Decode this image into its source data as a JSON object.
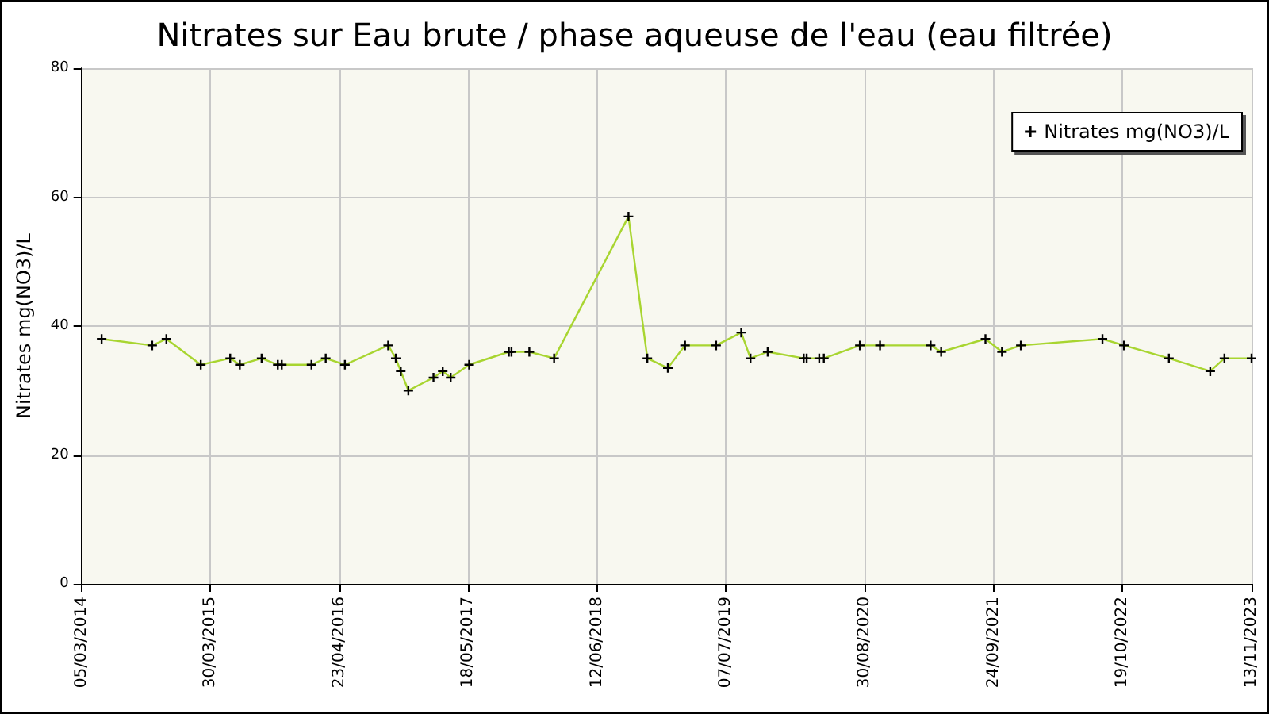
{
  "chart_data": {
    "type": "line",
    "title": "Nitrates sur Eau brute / phase aqueuse de l'eau (eau filtrée)",
    "ylabel": "Nitrates mg(NO3)/L",
    "x": [
      "2014-05-05",
      "2014-10-05",
      "2014-11-17",
      "2015-03-01",
      "2015-05-29",
      "2015-06-27",
      "2015-09-01",
      "2015-10-20",
      "2015-11-01",
      "2016-01-30",
      "2016-03-13",
      "2016-05-10",
      "2016-09-18",
      "2016-10-11",
      "2016-10-26",
      "2016-11-18",
      "2017-02-02",
      "2017-03-02",
      "2017-03-26",
      "2017-05-21",
      "2017-09-18",
      "2017-09-26",
      "2017-11-19",
      "2018-02-02",
      "2018-09-15",
      "2018-11-11",
      "2019-01-12",
      "2019-03-05",
      "2019-06-07",
      "2019-08-22",
      "2019-09-19",
      "2019-11-10",
      "2020-02-27",
      "2020-03-07",
      "2020-04-14",
      "2020-04-28",
      "2020-08-15",
      "2020-10-15",
      "2021-03-17",
      "2021-04-18",
      "2021-08-30",
      "2021-10-19",
      "2021-12-15",
      "2022-08-19",
      "2022-10-23",
      "2023-03-08",
      "2023-07-11",
      "2023-08-23",
      "2023-11-13"
    ],
    "series": [
      {
        "name": "Nitrates mg(NO3)/L",
        "color": "#a8d530",
        "values": [
          38,
          37,
          38,
          34,
          35,
          34,
          35,
          34,
          34,
          34,
          35,
          34,
          37,
          35,
          33,
          30,
          32,
          33,
          32,
          34,
          36,
          36,
          36,
          35,
          57,
          35,
          33.5,
          37,
          37,
          39,
          35,
          36,
          35,
          35,
          35,
          35,
          37,
          37,
          37,
          36,
          38,
          36,
          37,
          38,
          37,
          35,
          33,
          35,
          35
        ]
      }
    ],
    "xlim": [
      "2014-03-05",
      "2023-11-13"
    ],
    "xticks": [
      {
        "value": "2014-03-05",
        "label": "05/03/2014"
      },
      {
        "value": "2015-03-30",
        "label": "30/03/2015"
      },
      {
        "value": "2016-04-23",
        "label": "23/04/2016"
      },
      {
        "value": "2017-05-18",
        "label": "18/05/2017"
      },
      {
        "value": "2018-06-12",
        "label": "12/06/2018"
      },
      {
        "value": "2019-07-07",
        "label": "07/07/2019"
      },
      {
        "value": "2020-08-30",
        "label": "30/08/2020"
      },
      {
        "value": "2021-09-24",
        "label": "24/09/2021"
      },
      {
        "value": "2022-10-19",
        "label": "19/10/2022"
      },
      {
        "value": "2023-11-13",
        "label": "13/11/2023"
      }
    ],
    "ylim": [
      0,
      80
    ],
    "yticks": [
      0,
      20,
      40,
      60,
      80
    ],
    "grid": true,
    "legend": "top right",
    "marker": "cross",
    "line_style": "solid"
  }
}
